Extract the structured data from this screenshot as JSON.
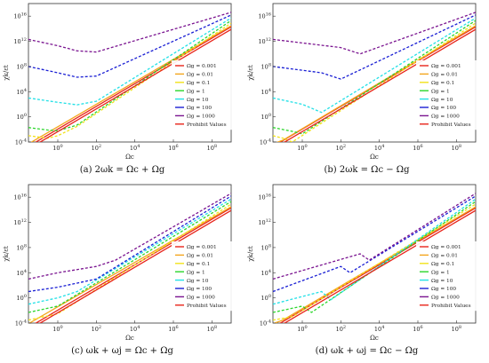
{
  "figure": {
    "panels": [
      {
        "caption": "(a) 2ωk = Ωc + Ωg"
      },
      {
        "caption": "(b) 2ωk = Ωc − Ωg"
      },
      {
        "caption": "(c) ωk + ωj = Ωc + Ωg"
      },
      {
        "caption": "(d) ωk + ωj = Ωc − Ωg"
      }
    ]
  },
  "chart_data": [
    {
      "type": "line",
      "panel": "a",
      "xlabel": "Ωc",
      "ylabel": "χk/εt",
      "xscale": "log",
      "yscale": "log",
      "xlim": [
        0.03,
        1000000000
      ],
      "ylim": [
        0.0001,
        1000000000000000000
      ],
      "xticks": [
        "10^0",
        "10^2",
        "10^4",
        "10^6",
        "10^8"
      ],
      "yticks": [
        "10^-4",
        "10^0",
        "10^4",
        "10^8",
        "10^12",
        "10^16"
      ],
      "legend_position": "right",
      "legend": [
        "Ωg = 0.001",
        "Ωg = 0.01",
        "Ωg = 0.1",
        "Ωg = 1",
        "Ωg = 10",
        "Ωg = 100",
        "Ωg = 1000",
        "Prohibit Values"
      ],
      "colors": [
        "#e8241a",
        "#f3a51c",
        "#f2e21a",
        "#2bd62b",
        "#22e0e6",
        "#1a1fd4",
        "#7a1490",
        "#e8241a"
      ],
      "series": [
        {
          "name": "Ωg = 0.001",
          "omega_g": 0.001,
          "x": [
            0.03,
            1000000000
          ],
          "y": [
            2e-05,
            200000000000000
          ]
        },
        {
          "name": "Ωg = 0.01",
          "omega_g": 0.01,
          "x": [
            0.03,
            1000000000
          ],
          "y": [
            5e-05,
            300000000000000
          ]
        },
        {
          "name": "Ωg = 0.1",
          "omega_g": 0.1,
          "x": [
            0.03,
            0.3,
            1,
            10,
            1000000000
          ],
          "y": [
            0.001,
            0.0004,
            0.001,
            0.03,
            800000000000000
          ]
        },
        {
          "name": "Ωg = 1",
          "omega_g": 1,
          "x": [
            0.03,
            0.3,
            1,
            10,
            1000000000
          ],
          "y": [
            0.02,
            0.008,
            0.006,
            0.05,
            2000000000000000
          ]
        },
        {
          "name": "Ωg = 10",
          "omega_g": 10,
          "x": [
            0.03,
            1,
            10,
            100,
            1000000000
          ],
          "y": [
            1000,
            200,
            80,
            300,
            5000000000000000
          ]
        },
        {
          "name": "Ωg = 100",
          "omega_g": 100,
          "x": [
            0.03,
            1,
            10,
            100,
            1000000000
          ],
          "y": [
            100000000,
            10000000,
            2000000,
            3000000,
            15000000000000000
          ]
        },
        {
          "name": "Ωg = 1000",
          "omega_g": 1000,
          "x": [
            0.03,
            1,
            10,
            100,
            1000000000
          ],
          "y": [
            2000000000000,
            200000000000,
            30000000000,
            20000000000,
            40000000000000000
          ]
        },
        {
          "name": "Prohibit Values",
          "x": [
            0.03,
            1000000000
          ],
          "y": [
            8e-06,
            80000000000000
          ]
        }
      ]
    },
    {
      "type": "line",
      "panel": "b",
      "xlabel": "Ωc",
      "ylabel": "χk/εt",
      "xscale": "log",
      "yscale": "log",
      "xlim": [
        0.03,
        1000000000
      ],
      "ylim": [
        0.0001,
        1000000000000000000
      ],
      "xticks": [
        "10^0",
        "10^2",
        "10^4",
        "10^6",
        "10^8"
      ],
      "yticks": [
        "10^-4",
        "10^0",
        "10^4",
        "10^8",
        "10^12",
        "10^16"
      ],
      "legend_position": "right",
      "legend": [
        "Ωg = 0.001",
        "Ωg = 0.01",
        "Ωg = 0.1",
        "Ωg = 1",
        "Ωg = 10",
        "Ωg = 100",
        "Ωg = 1000",
        "Prohibit Values"
      ],
      "colors": [
        "#e8241a",
        "#f3a51c",
        "#f2e21a",
        "#2bd62b",
        "#22e0e6",
        "#1a1fd4",
        "#7a1490",
        "#e8241a"
      ],
      "series": [
        {
          "name": "Ωg = 0.001",
          "omega_g": 0.001,
          "x": [
            0.03,
            1000000000
          ],
          "y": [
            2e-05,
            200000000000000
          ]
        },
        {
          "name": "Ωg = 0.01",
          "omega_g": 0.01,
          "x": [
            0.03,
            0.1,
            1000000000
          ],
          "y": [
            5e-05,
            0.0002,
            300000000000000
          ]
        },
        {
          "name": "Ωg = 0.1",
          "omega_g": 0.1,
          "x": [
            0.03,
            0.1,
            0.3,
            1000000000
          ],
          "y": [
            0.001,
            0.0004,
            0.0001,
            800000000000000
          ]
        },
        {
          "name": "Ωg = 1",
          "omega_g": 1,
          "x": [
            0.03,
            0.3,
            1,
            1000000000
          ],
          "y": [
            0.02,
            0.005,
            0.002,
            2000000000000000
          ]
        },
        {
          "name": "Ωg = 10",
          "omega_g": 10,
          "x": [
            0.03,
            1,
            10,
            1000000000
          ],
          "y": [
            1000,
            100,
            5,
            5000000000000000
          ]
        },
        {
          "name": "Ωg = 100",
          "omega_g": 100,
          "x": [
            0.03,
            10,
            100,
            1000000000
          ],
          "y": [
            100000000,
            10000000,
            1000000,
            15000000000000000
          ]
        },
        {
          "name": "Ωg = 1000",
          "omega_g": 1000,
          "x": [
            0.03,
            100,
            1000,
            1000000000
          ],
          "y": [
            2000000000000,
            100000000000,
            10000000000,
            40000000000000000
          ]
        },
        {
          "name": "Prohibit Values",
          "x": [
            0.03,
            1000000000
          ],
          "y": [
            8e-06,
            80000000000000
          ]
        }
      ]
    },
    {
      "type": "line",
      "panel": "c",
      "xlabel": "Ωc",
      "ylabel": "χk/εt",
      "xscale": "log",
      "yscale": "log",
      "xlim": [
        0.03,
        1000000000
      ],
      "ylim": [
        0.0001,
        1000000000000000000
      ],
      "xticks": [
        "10^0",
        "10^2",
        "10^4",
        "10^6",
        "10^8"
      ],
      "yticks": [
        "10^-4",
        "10^0",
        "10^4",
        "10^8",
        "10^12",
        "10^16"
      ],
      "legend_position": "right",
      "legend": [
        "Ωg = 0.001",
        "Ωg = 0.01",
        "Ωg = 0.1",
        "Ωg = 1",
        "Ωg = 10",
        "Ωg = 100",
        "Ωg = 1000",
        "Prohibit Values"
      ],
      "colors": [
        "#e8241a",
        "#f3a51c",
        "#f2e21a",
        "#2bd62b",
        "#22e0e6",
        "#1a1fd4",
        "#7a1490",
        "#e8241a"
      ],
      "series": [
        {
          "name": "Ωg = 0.001",
          "omega_g": 0.001,
          "x": [
            0.03,
            1000000000
          ],
          "y": [
            2e-05,
            200000000000000
          ]
        },
        {
          "name": "Ωg = 0.01",
          "omega_g": 0.01,
          "x": [
            0.03,
            1000000000
          ],
          "y": [
            8e-05,
            300000000000000
          ]
        },
        {
          "name": "Ωg = 0.1",
          "omega_g": 0.1,
          "x": [
            0.03,
            1,
            1000000000
          ],
          "y": [
            0.0003,
            0.003,
            800000000000000
          ]
        },
        {
          "name": "Ωg = 1",
          "omega_g": 1,
          "x": [
            0.03,
            1,
            1000000000
          ],
          "y": [
            0.005,
            0.05,
            2000000000000000
          ]
        },
        {
          "name": "Ωg = 10",
          "omega_g": 10,
          "x": [
            0.03,
            1,
            10,
            1000000000
          ],
          "y": [
            0.1,
            1,
            10,
            5000000000000000
          ]
        },
        {
          "name": "Ωg = 100",
          "omega_g": 100,
          "x": [
            0.03,
            1,
            100,
            1000000000
          ],
          "y": [
            10,
            50,
            1000,
            15000000000000000
          ]
        },
        {
          "name": "Ωg = 1000",
          "omega_g": 1000,
          "x": [
            0.03,
            1,
            100,
            1000,
            1000000000
          ],
          "y": [
            1000,
            10000,
            100000,
            1000000,
            40000000000000000
          ]
        },
        {
          "name": "Prohibit Values",
          "x": [
            0.03,
            1000000000
          ],
          "y": [
            8e-06,
            80000000000000
          ]
        }
      ]
    },
    {
      "type": "line",
      "panel": "d",
      "xlabel": "Ωc",
      "ylabel": "χk/εt",
      "xscale": "log",
      "yscale": "log",
      "xlim": [
        0.03,
        1000000000
      ],
      "ylim": [
        0.0001,
        1000000000000000000
      ],
      "xticks": [
        "10^0",
        "10^2",
        "10^4",
        "10^6",
        "10^8"
      ],
      "yticks": [
        "10^-4",
        "10^0",
        "10^4",
        "10^8",
        "10^12",
        "10^16"
      ],
      "legend_position": "right",
      "legend": [
        "Ωg = 0.001",
        "Ωg = 0.01",
        "Ωg = 0.1",
        "Ωg = 1",
        "Ωg = 10",
        "Ωg = 100",
        "Ωg = 1000",
        "Prohibit Values"
      ],
      "colors": [
        "#e8241a",
        "#f3a51c",
        "#f2e21a",
        "#2bd62b",
        "#22e0e6",
        "#1a1fd4",
        "#7a1490",
        "#e8241a"
      ],
      "series": [
        {
          "name": "Ωg = 0.001",
          "omega_g": 0.001,
          "x": [
            0.03,
            1000000000
          ],
          "y": [
            2e-05,
            200000000000000
          ]
        },
        {
          "name": "Ωg = 0.01",
          "omega_g": 0.01,
          "x": [
            0.03,
            0.1,
            1000000000
          ],
          "y": [
            8e-05,
            0.0003,
            300000000000000
          ]
        },
        {
          "name": "Ωg = 0.1",
          "omega_g": 0.1,
          "x": [
            0.03,
            0.3,
            1000000000
          ],
          "y": [
            0.0003,
            0.001,
            800000000000000
          ]
        },
        {
          "name": "Ωg = 1",
          "omega_g": 1,
          "x": [
            0.03,
            1,
            3,
            1000000000
          ],
          "y": [
            0.005,
            0.05,
            0.005,
            2000000000000000
          ]
        },
        {
          "name": "Ωg = 10",
          "omega_g": 10,
          "x": [
            0.03,
            10,
            30,
            1000000000
          ],
          "y": [
            0.1,
            10,
            0.5,
            5000000000000000
          ]
        },
        {
          "name": "Ωg = 100",
          "omega_g": 100,
          "x": [
            0.03,
            100,
            300,
            1000000000
          ],
          "y": [
            10,
            100000,
            10000,
            15000000000000000
          ]
        },
        {
          "name": "Ωg = 1000",
          "omega_g": 1000,
          "x": [
            0.03,
            1000,
            3000,
            1000000000
          ],
          "y": [
            1000,
            10000000,
            1000000,
            40000000000000000
          ]
        },
        {
          "name": "Prohibit Values",
          "x": [
            0.03,
            1000000000
          ],
          "y": [
            8e-06,
            80000000000000
          ]
        }
      ]
    }
  ]
}
